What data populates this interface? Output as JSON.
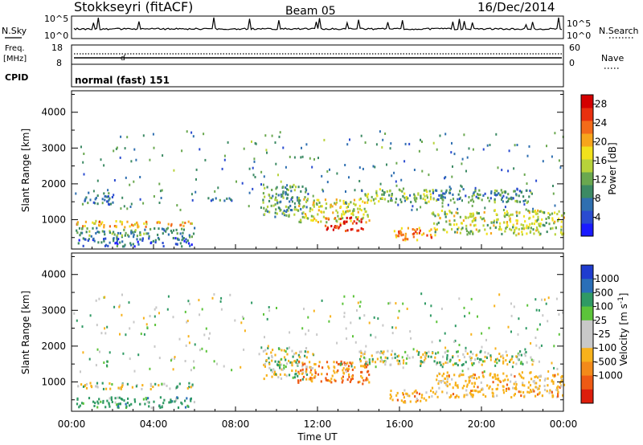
{
  "header": {
    "station": "Stokkseyri (fitACF)",
    "beam": "Beam 05",
    "date": "16/Dec/2014"
  },
  "strips": {
    "nsky_label": "N.Sky",
    "nsky_ticks": [
      "10^5",
      "10^0"
    ],
    "nsearch_label": "N.Search",
    "nsearch_ticks": [
      "10^5",
      "10^0"
    ],
    "freq_label_1": "Freq.",
    "freq_label_2": "[MHz]",
    "freq_ticks": [
      "18",
      "8"
    ],
    "nave_label": "Nave",
    "nave_ticks": [
      "60",
      "0"
    ],
    "cpid_label": "CPID",
    "cpid_value": "normal (fast) 151"
  },
  "chart_data": [
    {
      "type": "heatmap",
      "title": "",
      "xlabel": "",
      "ylabel": "Slant Range [km]",
      "xlim": [
        0,
        24
      ],
      "ylim": [
        180,
        4600
      ],
      "x_ticks": [
        "00:00",
        "04:00",
        "08:00",
        "12:00",
        "16:00",
        "20:00",
        "00:00"
      ],
      "y_ticks": [
        "1000",
        "2000",
        "3000",
        "4000"
      ],
      "y_tick_values": [
        1000,
        2000,
        3000,
        4000
      ],
      "colorbar": {
        "label": "Power [dB]",
        "ticks": [
          "4",
          "8",
          "12",
          "16",
          "20",
          "24",
          "28"
        ],
        "tick_values": [
          4,
          8,
          12,
          16,
          20,
          24,
          28
        ],
        "range": [
          0,
          30
        ],
        "colors": [
          "#1a1aff",
          "#2a4bd0",
          "#2f6fb0",
          "#3c8a64",
          "#6aa84f",
          "#b7d23a",
          "#f2e21c",
          "#f7a51c",
          "#f36b1a",
          "#e8300f",
          "#d40000"
        ]
      },
      "regions": [
        {
          "t": [
            0.2,
            6.0
          ],
          "r": [
            820,
            1000
          ],
          "power": 20
        },
        {
          "t": [
            0.2,
            6.0
          ],
          "r": [
            550,
            800
          ],
          "power": 10
        },
        {
          "t": [
            0.2,
            6.0
          ],
          "r": [
            280,
            520
          ],
          "power": 6
        },
        {
          "t": [
            0.5,
            2.0
          ],
          "r": [
            1450,
            1800
          ],
          "power": 8
        },
        {
          "t": [
            6.2,
            8.0
          ],
          "r": [
            1550,
            1650
          ],
          "power": 7
        },
        {
          "t": [
            9.3,
            11.5
          ],
          "r": [
            1100,
            2000
          ],
          "power": 11
        },
        {
          "t": [
            11.0,
            14.5
          ],
          "r": [
            950,
            1600
          ],
          "power": 16
        },
        {
          "t": [
            12.3,
            14.2
          ],
          "r": [
            700,
            1100
          ],
          "power": 26
        },
        {
          "t": [
            14.0,
            17.5
          ],
          "r": [
            1500,
            1900
          ],
          "power": 14
        },
        {
          "t": [
            15.5,
            17.6
          ],
          "r": [
            450,
            800
          ],
          "power": 22
        },
        {
          "t": [
            17.5,
            22.5
          ],
          "r": [
            1500,
            1900
          ],
          "power": 9
        },
        {
          "t": [
            17.5,
            24.0
          ],
          "r": [
            600,
            1300
          ],
          "power": 15
        }
      ]
    },
    {
      "type": "heatmap",
      "title": "",
      "xlabel": "Time UT",
      "ylabel": "Slant Range [km]",
      "xlim": [
        0,
        24
      ],
      "ylim": [
        180,
        4600
      ],
      "x_ticks": [
        "00:00",
        "04:00",
        "08:00",
        "12:00",
        "16:00",
        "20:00",
        "00:00"
      ],
      "y_ticks": [
        "1000",
        "2000",
        "3000",
        "4000"
      ],
      "y_tick_values": [
        1000,
        2000,
        3000,
        4000
      ],
      "colorbar": {
        "label": "Velocity [m s^-1]",
        "ticks": [
          "1000",
          "500",
          "100",
          "25",
          "-25",
          "-100",
          "-500",
          "-1000"
        ],
        "colors": [
          "#1f3ccf",
          "#2a6fb8",
          "#2f9a64",
          "#5cc33a",
          "#c8c8c8",
          "#c8c8c8",
          "#f7b21c",
          "#f38a1a",
          "#ee5a14",
          "#dd1e0c"
        ]
      },
      "regions": [
        {
          "t": [
            0.2,
            6.0
          ],
          "r": [
            820,
            1000
          ],
          "velocity": 0
        },
        {
          "t": [
            0.2,
            6.0
          ],
          "r": [
            300,
            600
          ],
          "velocity": 150
        },
        {
          "t": [
            9.3,
            11.5
          ],
          "r": [
            1100,
            2000
          ],
          "velocity": 0
        },
        {
          "t": [
            11.0,
            14.5
          ],
          "r": [
            950,
            1600
          ],
          "velocity": -300
        },
        {
          "t": [
            14.0,
            17.5
          ],
          "r": [
            1500,
            1900
          ],
          "velocity": 0
        },
        {
          "t": [
            15.5,
            17.6
          ],
          "r": [
            450,
            800
          ],
          "velocity": -200
        },
        {
          "t": [
            17.5,
            22.5
          ],
          "r": [
            1500,
            1900
          ],
          "velocity": 0
        },
        {
          "t": [
            17.5,
            24.0
          ],
          "r": [
            600,
            1300
          ],
          "velocity": -150
        }
      ]
    }
  ]
}
